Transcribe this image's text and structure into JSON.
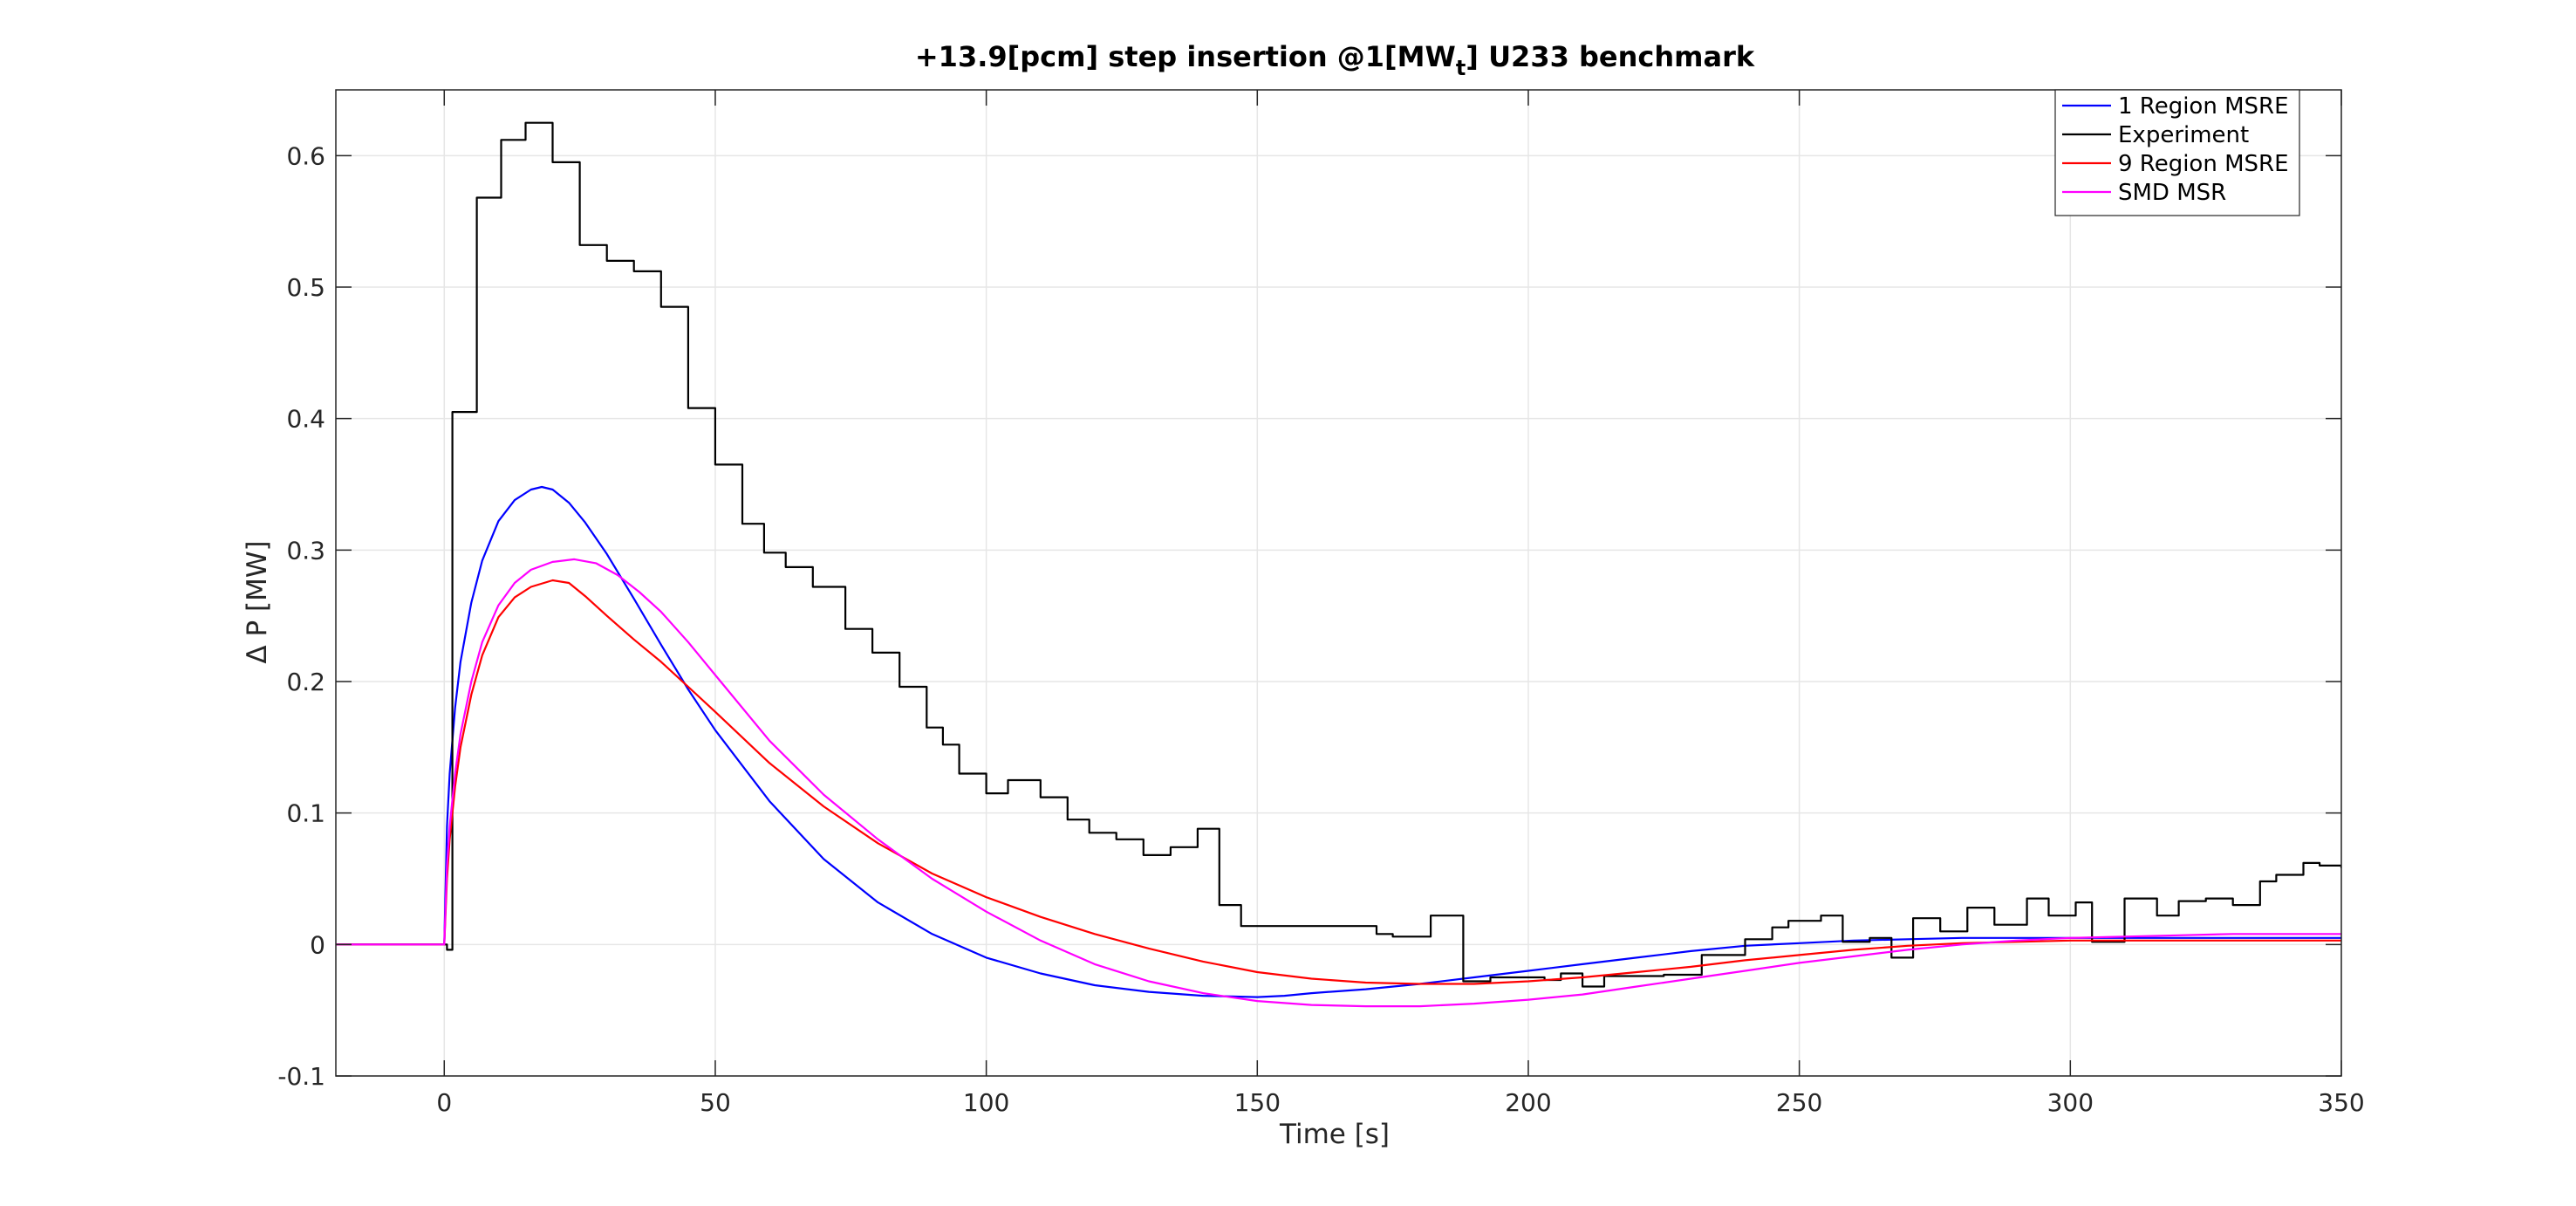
{
  "chart_data": {
    "type": "line",
    "title": {
      "main": "+13.9[pcm] step insertion @1[MW",
      "subscript": "t",
      "suffix": "] U233 benchmark"
    },
    "xlabel": "Time [s]",
    "ylabel": "Δ P [MW]",
    "xlim": [
      -20,
      350
    ],
    "ylim": [
      -0.1,
      0.65
    ],
    "xticks": [
      0,
      50,
      100,
      150,
      200,
      250,
      300,
      350
    ],
    "xtick_labels": [
      "0",
      "50",
      "100",
      "150",
      "200",
      "250",
      "300",
      "350"
    ],
    "yticks": [
      -0.1,
      0,
      0.1,
      0.2,
      0.3,
      0.4,
      0.5,
      0.6
    ],
    "ytick_labels": [
      "-0.1",
      "0",
      "0.1",
      "0.2",
      "0.3",
      "0.4",
      "0.5",
      "0.6"
    ],
    "grid": true,
    "legend_position": "top-right",
    "series": [
      {
        "name": "1 Region MSRE",
        "color": "#0000ff",
        "step": false,
        "x": [
          -20,
          0,
          0.5,
          1,
          2,
          3,
          5,
          7,
          10,
          13,
          16,
          18,
          20,
          23,
          26,
          30,
          35,
          40,
          45,
          50,
          60,
          70,
          80,
          90,
          100,
          110,
          120,
          130,
          140,
          150,
          155,
          160,
          170,
          180,
          190,
          200,
          210,
          220,
          230,
          240,
          250,
          260,
          270,
          280,
          290,
          300,
          310,
          320,
          330,
          340,
          350
        ],
        "y": [
          0,
          0,
          0.09,
          0.13,
          0.18,
          0.215,
          0.26,
          0.292,
          0.322,
          0.338,
          0.346,
          0.348,
          0.346,
          0.336,
          0.321,
          0.297,
          0.263,
          0.228,
          0.194,
          0.163,
          0.109,
          0.065,
          0.032,
          0.008,
          -0.01,
          -0.022,
          -0.031,
          -0.036,
          -0.039,
          -0.04,
          -0.039,
          -0.037,
          -0.034,
          -0.03,
          -0.025,
          -0.02,
          -0.015,
          -0.01,
          -0.005,
          -0.001,
          0.001,
          0.003,
          0.004,
          0.005,
          0.005,
          0.005,
          0.005,
          0.005,
          0.005,
          0.005,
          0.005
        ]
      },
      {
        "name": "Experiment",
        "color": "#000000",
        "step": true,
        "x": [
          -20,
          0,
          0.5,
          1.5,
          6,
          10.5,
          15,
          20,
          25,
          30,
          35,
          40,
          45,
          50,
          55,
          59,
          63,
          68,
          74,
          79,
          84,
          89,
          92,
          95,
          100,
          104,
          110,
          115,
          119,
          124,
          129,
          134,
          139,
          143,
          147,
          153,
          160,
          165,
          172,
          175,
          182,
          188,
          193,
          198,
          203,
          206,
          210,
          214,
          220,
          225,
          232,
          240,
          245,
          248,
          254,
          258,
          263,
          267,
          271,
          276,
          281,
          286,
          292,
          296,
          301,
          304,
          310,
          316,
          320,
          325,
          330,
          335,
          338,
          343,
          346,
          350
        ],
        "y": [
          0,
          0,
          -0.004,
          0.405,
          0.568,
          0.612,
          0.625,
          0.595,
          0.532,
          0.52,
          0.512,
          0.485,
          0.408,
          0.365,
          0.32,
          0.298,
          0.287,
          0.272,
          0.24,
          0.222,
          0.196,
          0.165,
          0.152,
          0.13,
          0.115,
          0.125,
          0.112,
          0.095,
          0.085,
          0.08,
          0.068,
          0.074,
          0.088,
          0.03,
          0.014,
          0.014,
          0.014,
          0.014,
          0.008,
          0.006,
          0.022,
          -0.028,
          -0.025,
          -0.025,
          -0.027,
          -0.022,
          -0.032,
          -0.024,
          -0.024,
          -0.023,
          -0.008,
          0.004,
          0.013,
          0.018,
          0.022,
          0.002,
          0.005,
          -0.01,
          0.02,
          0.01,
          0.028,
          0.015,
          0.035,
          0.022,
          0.032,
          0.002,
          0.035,
          0.022,
          0.033,
          0.035,
          0.03,
          0.048,
          0.053,
          0.062,
          0.06,
          0.058
        ]
      },
      {
        "name": "9 Region MSRE",
        "color": "#ff0000",
        "step": false,
        "x": [
          -20,
          0,
          0.5,
          1,
          2,
          3,
          5,
          7,
          10,
          13,
          16,
          20,
          23,
          26,
          30,
          35,
          40,
          45,
          50,
          60,
          70,
          80,
          90,
          100,
          110,
          120,
          130,
          140,
          150,
          160,
          170,
          180,
          190,
          200,
          210,
          220,
          230,
          240,
          250,
          260,
          270,
          280,
          290,
          300,
          310,
          320,
          330,
          340,
          350
        ],
        "y": [
          0,
          0,
          0.05,
          0.08,
          0.12,
          0.15,
          0.19,
          0.22,
          0.249,
          0.264,
          0.272,
          0.277,
          0.275,
          0.265,
          0.25,
          0.232,
          0.215,
          0.196,
          0.177,
          0.138,
          0.105,
          0.077,
          0.054,
          0.036,
          0.021,
          0.008,
          -0.003,
          -0.013,
          -0.021,
          -0.026,
          -0.029,
          -0.03,
          -0.03,
          -0.028,
          -0.025,
          -0.021,
          -0.017,
          -0.012,
          -0.008,
          -0.004,
          -0.001,
          0.001,
          0.002,
          0.003,
          0.003,
          0.003,
          0.003,
          0.003,
          0.003
        ]
      },
      {
        "name": "SMD MSR",
        "color": "#ff00ff",
        "step": false,
        "x": [
          -20,
          0,
          0.5,
          1,
          2,
          3,
          5,
          7,
          10,
          13,
          16,
          20,
          24,
          28,
          32,
          36,
          40,
          45,
          50,
          60,
          70,
          80,
          90,
          100,
          110,
          120,
          130,
          140,
          150,
          160,
          170,
          180,
          190,
          200,
          210,
          220,
          230,
          240,
          250,
          260,
          270,
          280,
          290,
          300,
          310,
          320,
          330,
          340,
          350
        ],
        "y": [
          0,
          0,
          0.06,
          0.09,
          0.13,
          0.16,
          0.2,
          0.23,
          0.258,
          0.275,
          0.285,
          0.291,
          0.293,
          0.29,
          0.281,
          0.268,
          0.253,
          0.23,
          0.205,
          0.155,
          0.114,
          0.08,
          0.05,
          0.025,
          0.003,
          -0.015,
          -0.028,
          -0.037,
          -0.043,
          -0.046,
          -0.047,
          -0.047,
          -0.045,
          -0.042,
          -0.038,
          -0.032,
          -0.026,
          -0.02,
          -0.014,
          -0.009,
          -0.004,
          0,
          0.003,
          0.005,
          0.006,
          0.007,
          0.008,
          0.008,
          0.008
        ]
      }
    ]
  }
}
